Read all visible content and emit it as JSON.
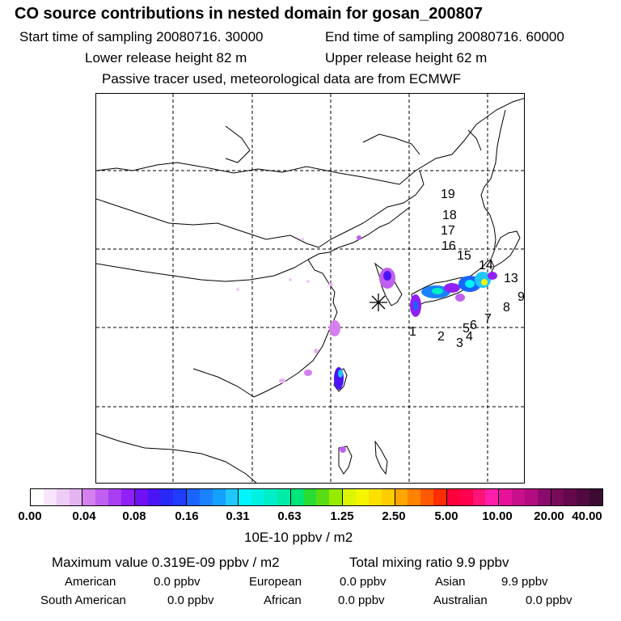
{
  "header": {
    "title": "CO  source contributions in nested domain for gosan_200807",
    "start_time": "Start time of sampling 20080716. 30000",
    "end_time": "End time of sampling 20080716. 60000",
    "lower_height": "Lower release height   82 m",
    "upper_height": "Upper release height   62 m",
    "tracer_note": "Passive tracer used, meteorological data are from ECMWF"
  },
  "map": {
    "receptor_marker": "receptor-star-icon",
    "source_labels": [
      "1",
      "2",
      "3",
      "4",
      "5",
      "6",
      "7",
      "8",
      "9",
      "13",
      "14",
      "15",
      "16",
      "17",
      "18",
      "19"
    ]
  },
  "colorbar": {
    "tick_labels": [
      "0.00",
      "0.04",
      "0.08",
      "0.16",
      "0.31",
      "0.63",
      "1.25",
      "2.50",
      "5.00",
      "10.00",
      "20.00",
      "40.00"
    ],
    "units": "10E-10 ppbv / m2",
    "colors": [
      [
        "#ffffff",
        "#f7e6fb",
        "#efccf7",
        "#e6b3f2"
      ],
      [
        "#d580ef",
        "#c060f0",
        "#a83ff2",
        "#9020f5"
      ],
      [
        "#7010f5",
        "#4b14f5",
        "#2828f8",
        "#1f3cff"
      ],
      [
        "#1a64ff",
        "#1a82ff",
        "#14a0ff",
        "#1ec8ff"
      ],
      [
        "#00f5ff",
        "#00f0e1",
        "#00eec8",
        "#00eba8"
      ],
      [
        "#00e678",
        "#28dc32",
        "#5adc14",
        "#96eb00"
      ],
      [
        "#dcf500",
        "#f5f500",
        "#fbe000",
        "#ffcc00"
      ],
      [
        "#ffa500",
        "#ff8200",
        "#ff5a00",
        "#ff2d00"
      ],
      [
        "#ff003c",
        "#ff0050",
        "#ff1478",
        "#ff1eaa"
      ],
      [
        "#e6129a",
        "#c8108c",
        "#b40c80",
        "#8c0a6e"
      ],
      [
        "#780a5a",
        "#64084b",
        "#500a41",
        "#3c0a32"
      ]
    ]
  },
  "summary": {
    "max_value": "Maximum value  0.319E-09 ppbv / m2",
    "total_mixing": "Total mixing ratio       9.9 ppbv",
    "american": "American",
    "american_val": "0.0 ppbv",
    "european": "European",
    "european_val": "0.0 ppbv",
    "asian": "Asian",
    "asian_val": "9.9 ppbv",
    "south_american": "South American",
    "south_american_val": "0.0 ppbv",
    "african": "African",
    "african_val": "0.0 ppbv",
    "australian": "Australian",
    "australian_val": "0.0 ppbv"
  }
}
